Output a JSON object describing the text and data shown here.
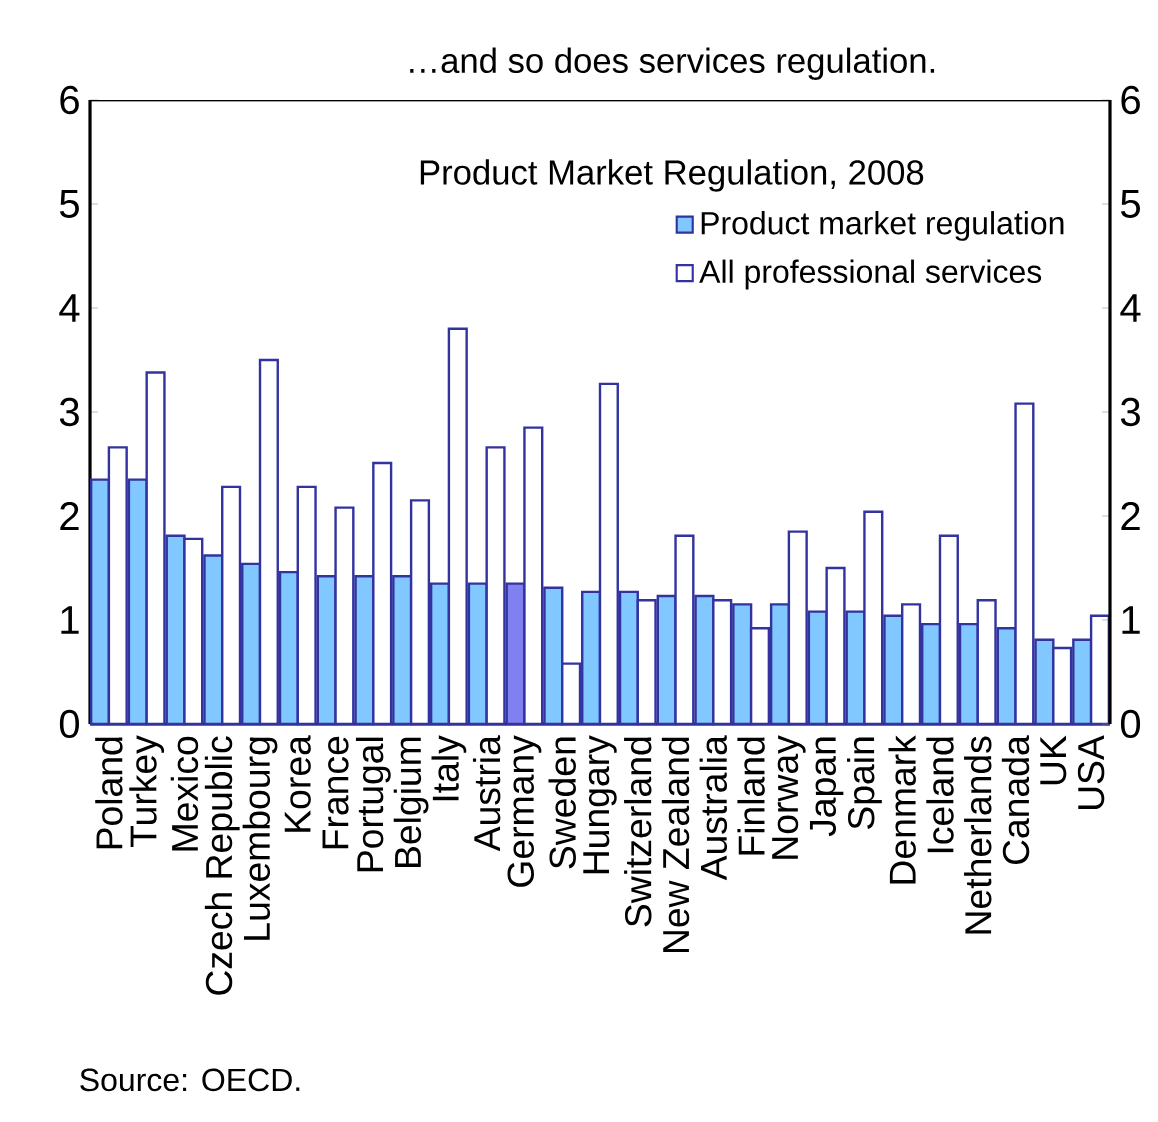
{
  "chart_data": {
    "type": "bar",
    "title": "…and so does services regulation.",
    "subtitle": "Product Market Regulation, 2008",
    "categories": [
      "Poland",
      "Turkey",
      "Mexico",
      "Czech Republic",
      "Luxembourg",
      "Korea",
      "France",
      "Portugal",
      "Belgium",
      "Italy",
      "Austria",
      "Germany",
      "Sweden",
      "Hungary",
      "Switzerland",
      "New Zealand",
      "Australia",
      "Finland",
      "Norway",
      "Japan",
      "Spain",
      "Denmark",
      "Iceland",
      "Netherlands",
      "Canada",
      "UK",
      "USA"
    ],
    "series": [
      {
        "name": "Product market regulation",
        "color": "#80c8ff",
        "colors": [
          "#80c8ff",
          "#80c8ff",
          "#80c8ff",
          "#80c8ff",
          "#80c8ff",
          "#80c8ff",
          "#80c8ff",
          "#80c8ff",
          "#80c8ff",
          "#80c8ff",
          "#80c8ff",
          "#8080f0",
          "#80c8ff",
          "#80c8ff",
          "#80c8ff",
          "#80c8ff",
          "#80c8ff",
          "#80c8ff",
          "#80c8ff",
          "#80c8ff",
          "#80c8ff",
          "#80c8ff",
          "#80c8ff",
          "#80c8ff",
          "#80c8ff",
          "#80c8ff",
          "#80c8ff"
        ],
        "values": [
          2.35,
          2.35,
          1.81,
          1.62,
          1.54,
          1.46,
          1.42,
          1.42,
          1.42,
          1.35,
          1.35,
          1.35,
          1.31,
          1.27,
          1.27,
          1.23,
          1.23,
          1.15,
          1.15,
          1.08,
          1.08,
          1.04,
          0.96,
          0.96,
          0.92,
          0.81,
          0.81
        ]
      },
      {
        "name": "All professional services",
        "color": "#ffffff",
        "values": [
          2.66,
          3.38,
          1.78,
          2.28,
          3.5,
          2.28,
          2.08,
          2.51,
          2.15,
          3.8,
          2.66,
          2.85,
          0.58,
          3.27,
          1.19,
          1.81,
          1.19,
          0.92,
          1.85,
          1.5,
          2.04,
          1.15,
          1.81,
          1.19,
          3.08,
          0.73,
          1.04
        ]
      }
    ],
    "ylim": [
      0,
      6
    ],
    "yticks": [
      0,
      1,
      2,
      3,
      4,
      5,
      6
    ],
    "y2lim": [
      0,
      6
    ],
    "y2ticks": [
      0,
      1,
      2,
      3,
      4,
      5,
      6
    ],
    "legend": "top right",
    "annotations": [
      "Source: OECD."
    ]
  }
}
